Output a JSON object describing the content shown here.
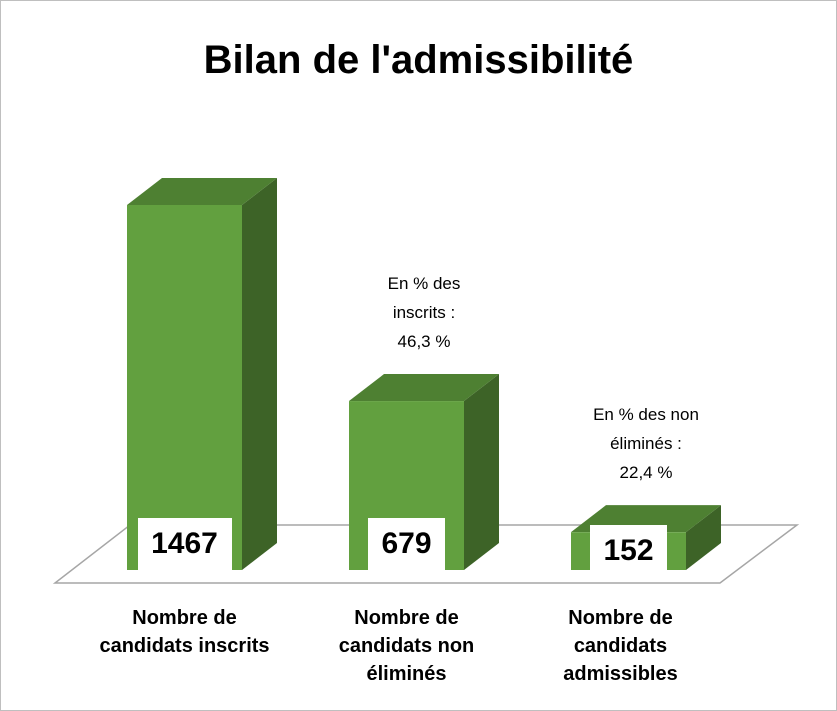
{
  "chart_data": {
    "type": "bar3d",
    "title": "Bilan de l'admissibilité",
    "categories": [
      "Nombre de\ncandidats inscrits",
      "Nombre de\ncandidats non\néliminés",
      "Nombre de\ncandidats\nadmissibles"
    ],
    "values": [
      1467,
      679,
      152
    ],
    "annotations": [
      null,
      "En % des\ninscrits :\n46,3 %",
      "En % des non\néliminés :\n22,4 %"
    ],
    "color": "#62a03f"
  }
}
